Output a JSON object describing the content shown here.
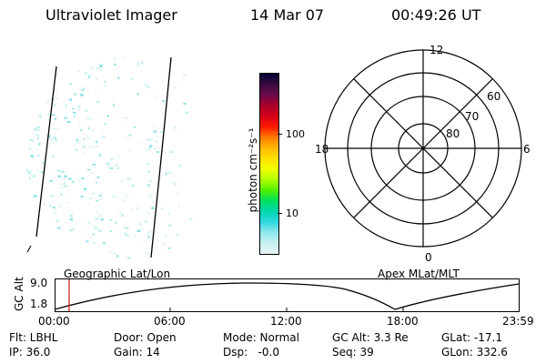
{
  "header": {
    "instrument": "Ultraviolet Imager",
    "date": "14 Mar 07",
    "time": "00:49:26 UT"
  },
  "colorbar": {
    "unit_label": "photon cm⁻²s⁻¹",
    "tick_labels": [
      "100",
      "10"
    ],
    "colors": [
      "#000033",
      "#3a0a40",
      "#6a0a4a",
      "#a8002a",
      "#d40018",
      "#ff1a00",
      "#ff7a00",
      "#ffb800",
      "#ffe000",
      "#f0ff00",
      "#b0ff00",
      "#50f000",
      "#00e060",
      "#00d8b0",
      "#30d8e0",
      "#90e8ec",
      "#c8f0f0",
      "#e8f6f6"
    ]
  },
  "polar_plot": {
    "hour_labels": [
      "12",
      "18",
      "6",
      "0"
    ],
    "lat_labels": [
      "60",
      "70",
      "80"
    ]
  },
  "timeline": {
    "ylabel": "GC Alt",
    "y_ticks": [
      "9.0",
      "1.8"
    ],
    "left_title": "Geographic Lat/Lon",
    "right_title": "Apex MLat/MLT",
    "x_ticks": [
      "00:00",
      "06:00",
      "12:00",
      "18:00",
      "23:59"
    ],
    "current_marker_color": "#cc2222"
  },
  "footer": {
    "filter": "Flt: LBHL",
    "ip": "IP: 36.0",
    "door": "Door: Open",
    "gain": "Gain: 14",
    "mode": "Mode: Normal",
    "dsp": "Dsp:   -0.0",
    "gc_alt": "GC Alt: 3.3 Re",
    "seq": "Seq: 39",
    "glat": "GLat: -17.1",
    "glon": "GLon: 332.6"
  }
}
